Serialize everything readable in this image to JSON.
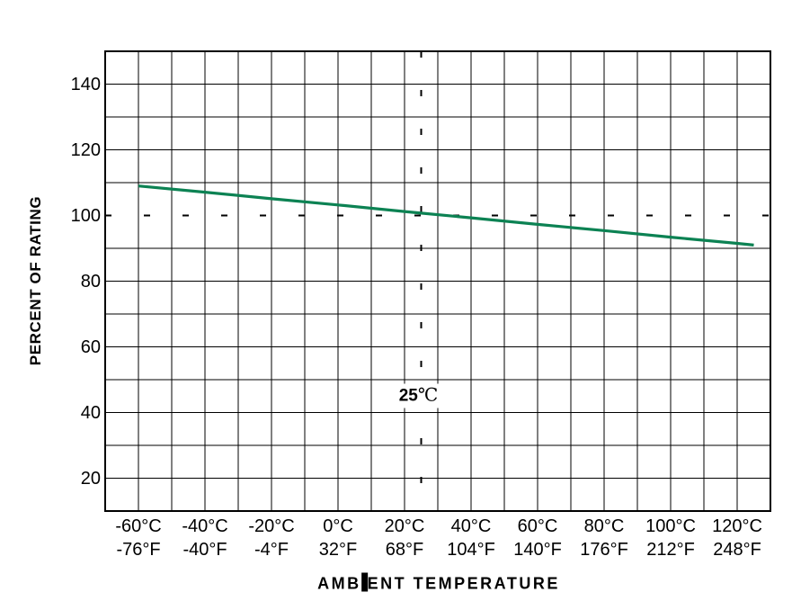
{
  "colors": {
    "line": "#0c8253",
    "grid": "#000000",
    "background": "#ffffff",
    "text": "#000000"
  },
  "chart_data": {
    "type": "line",
    "title": "",
    "xlabel": "AMBIENT TEMPERATURE",
    "xlabel_parts": [
      "AMB",
      "I",
      "ENT TEMPERATURE"
    ],
    "ylabel": "PERCENT OF RATING",
    "xlim": [
      -70,
      130
    ],
    "ylim": [
      10,
      150
    ],
    "x_minor_step": 10,
    "y_minor_step": 10,
    "grid": true,
    "legend": "none",
    "x_ticks": [
      {
        "value": -60,
        "celsius": "-60°C",
        "fahrenheit": "-76°F"
      },
      {
        "value": -40,
        "celsius": "-40°C",
        "fahrenheit": "-40°F"
      },
      {
        "value": -20,
        "celsius": "-20°C",
        "fahrenheit": "-4°F"
      },
      {
        "value": 0,
        "celsius": "0°C",
        "fahrenheit": "32°F"
      },
      {
        "value": 20,
        "celsius": "20°C",
        "fahrenheit": "68°F"
      },
      {
        "value": 40,
        "celsius": "40°C",
        "fahrenheit": "104°F"
      },
      {
        "value": 60,
        "celsius": "60°C",
        "fahrenheit": "140°F"
      },
      {
        "value": 80,
        "celsius": "80°C",
        "fahrenheit": "176°F"
      },
      {
        "value": 100,
        "celsius": "100°C",
        "fahrenheit": "212°F"
      },
      {
        "value": 120,
        "celsius": "120°C",
        "fahrenheit": "248°F"
      }
    ],
    "y_ticks": [
      {
        "value": 20,
        "label": "20"
      },
      {
        "value": 40,
        "label": "40"
      },
      {
        "value": 60,
        "label": "60"
      },
      {
        "value": 80,
        "label": "80"
      },
      {
        "value": 100,
        "label": "100"
      },
      {
        "value": 120,
        "label": "120"
      },
      {
        "value": 140,
        "label": "140"
      }
    ],
    "series": [
      {
        "name": "percent-of-rating-vs-temperature",
        "color": "#0c8253",
        "points": [
          [
            -60,
            109
          ],
          [
            -40,
            107.1
          ],
          [
            -20,
            105.1
          ],
          [
            0,
            103.2
          ],
          [
            20,
            101.2
          ],
          [
            25,
            100.7
          ],
          [
            40,
            99.3
          ],
          [
            60,
            97.3
          ],
          [
            80,
            95.4
          ],
          [
            100,
            93.4
          ],
          [
            120,
            91.5
          ],
          [
            125,
            91
          ]
        ]
      }
    ],
    "reference_lines": [
      {
        "axis": "y",
        "value": 100,
        "style": "dashed"
      },
      {
        "axis": "x",
        "value": 25,
        "style": "dashed"
      }
    ],
    "annotation": {
      "value": "25",
      "unit": "℃",
      "x_celsius": 25,
      "y_percent": 45
    }
  }
}
